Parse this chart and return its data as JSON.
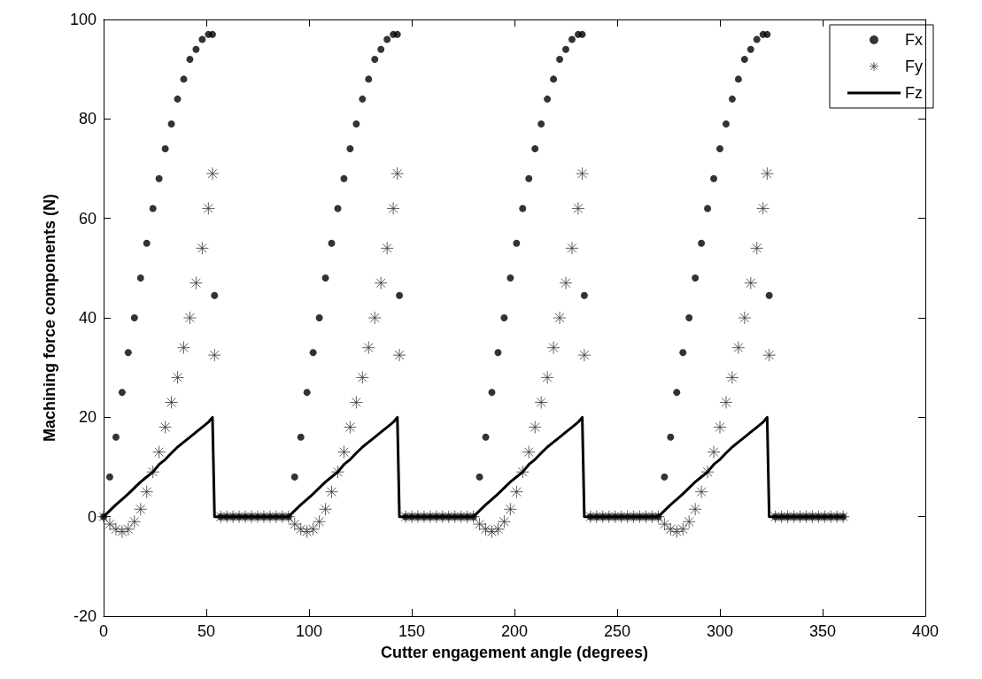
{
  "chart_data": {
    "type": "scatter",
    "xlabel": "Cutter engagement angle (degrees)",
    "ylabel": "Machining force components (N)",
    "xlim": [
      0,
      400
    ],
    "xticks": [
      0,
      50,
      100,
      150,
      200,
      250,
      300,
      350,
      400
    ],
    "ylim": [
      -20,
      100
    ],
    "yticks": [
      -20,
      0,
      20,
      40,
      60,
      80,
      100
    ],
    "grid": false,
    "legend": "top right",
    "x": [
      0,
      3,
      6,
      9,
      12,
      15,
      18,
      21,
      24,
      27,
      30,
      33,
      36,
      39,
      42,
      45,
      48,
      51,
      53,
      54,
      57,
      60,
      63,
      66,
      69,
      72,
      75,
      78,
      81,
      84,
      87,
      90,
      93,
      96,
      99,
      102,
      105,
      108,
      111,
      114,
      117,
      120,
      123,
      126,
      129,
      132,
      135,
      138,
      141,
      143,
      144,
      147,
      150,
      153,
      156,
      159,
      162,
      165,
      168,
      171,
      174,
      177,
      180,
      183,
      186,
      189,
      192,
      195,
      198,
      201,
      204,
      207,
      210,
      213,
      216,
      219,
      222,
      225,
      228,
      231,
      233,
      234,
      237,
      240,
      243,
      246,
      249,
      252,
      255,
      258,
      261,
      264,
      267,
      270,
      273,
      276,
      279,
      282,
      285,
      288,
      291,
      294,
      297,
      300,
      303,
      306,
      309,
      312,
      315,
      318,
      321,
      323,
      324,
      327,
      330,
      333,
      336,
      339,
      342,
      345,
      348,
      351,
      354,
      357,
      360
    ],
    "series": [
      {
        "name": "Fx",
        "marker": "circle",
        "color": "#000000",
        "values": [
          0,
          8,
          16,
          25,
          33,
          40,
          48,
          55,
          62,
          68,
          74,
          79,
          84,
          88,
          92,
          94,
          96,
          97,
          97,
          44.5,
          0,
          0,
          0,
          0,
          0,
          0,
          0,
          0,
          0,
          0,
          0,
          0,
          8,
          16,
          25,
          33,
          40,
          48,
          55,
          62,
          68,
          74,
          79,
          84,
          88,
          92,
          94,
          96,
          97,
          97,
          44.5,
          0,
          0,
          0,
          0,
          0,
          0,
          0,
          0,
          0,
          0,
          0,
          0,
          8,
          16,
          25,
          33,
          40,
          48,
          55,
          62,
          68,
          74,
          79,
          84,
          88,
          92,
          94,
          96,
          97,
          97,
          44.5,
          0,
          0,
          0,
          0,
          0,
          0,
          0,
          0,
          0,
          0,
          0,
          0,
          8,
          16,
          25,
          33,
          40,
          48,
          55,
          62,
          68,
          74,
          79,
          84,
          88,
          92,
          94,
          96,
          97,
          97,
          44.5,
          0,
          0,
          0,
          0,
          0,
          0,
          0,
          0,
          0,
          0,
          0,
          0
        ]
      },
      {
        "name": "Fy",
        "type": "scatter",
        "marker": "cross",
        "color": "#333333",
        "values": [
          0,
          -1.5,
          -2.5,
          -3,
          -2.5,
          -1,
          1.5,
          5,
          9,
          13,
          18,
          23,
          28,
          34,
          40,
          47,
          54,
          62,
          69,
          32.5,
          0,
          0,
          0,
          0,
          0,
          0,
          0,
          0,
          0,
          0,
          0,
          0,
          -1.5,
          -2.5,
          -3,
          -2.5,
          -1,
          1.5,
          5,
          9,
          13,
          18,
          23,
          28,
          34,
          40,
          47,
          54,
          62,
          69,
          32.5,
          0,
          0,
          0,
          0,
          0,
          0,
          0,
          0,
          0,
          0,
          0,
          0,
          -1.5,
          -2.5,
          -3,
          -2.5,
          -1,
          1.5,
          5,
          9,
          13,
          18,
          23,
          28,
          34,
          40,
          47,
          54,
          62,
          69,
          32.5,
          0,
          0,
          0,
          0,
          0,
          0,
          0,
          0,
          0,
          0,
          0,
          0,
          -1.5,
          -2.5,
          -3,
          -2.5,
          -1,
          1.5,
          5,
          9,
          13,
          18,
          23,
          28,
          34,
          40,
          47,
          54,
          62,
          69,
          32.5,
          0,
          0,
          0,
          0,
          0,
          0,
          0,
          0,
          0,
          0,
          0,
          0
        ]
      },
      {
        "name": "Fz",
        "type": "line",
        "marker": "none",
        "line_style": "solid",
        "color": "#000000",
        "values": [
          0,
          1.2,
          2.4,
          3.5,
          4.6,
          5.8,
          7,
          8,
          9,
          10.5,
          11.5,
          12.8,
          14,
          15,
          16,
          17,
          18,
          19,
          20,
          0,
          0,
          0,
          0,
          0,
          0,
          0,
          0,
          0,
          0,
          0,
          0,
          0,
          1.2,
          2.4,
          3.5,
          4.6,
          5.8,
          7,
          8,
          9,
          10.5,
          11.5,
          12.8,
          14,
          15,
          16,
          17,
          18,
          19,
          20,
          0,
          0,
          0,
          0,
          0,
          0,
          0,
          0,
          0,
          0,
          0,
          0,
          0,
          1.2,
          2.4,
          3.5,
          4.6,
          5.8,
          7,
          8,
          9,
          10.5,
          11.5,
          12.8,
          14,
          15,
          16,
          17,
          18,
          19,
          20,
          0,
          0,
          0,
          0,
          0,
          0,
          0,
          0,
          0,
          0,
          0,
          0,
          0,
          1.2,
          2.4,
          3.5,
          4.6,
          5.8,
          7,
          8,
          9,
          10.5,
          11.5,
          12.8,
          14,
          15,
          16,
          17,
          18,
          19,
          20,
          0,
          0,
          0,
          0,
          0,
          0,
          0,
          0,
          0,
          0,
          0,
          0,
          0
        ]
      }
    ]
  }
}
